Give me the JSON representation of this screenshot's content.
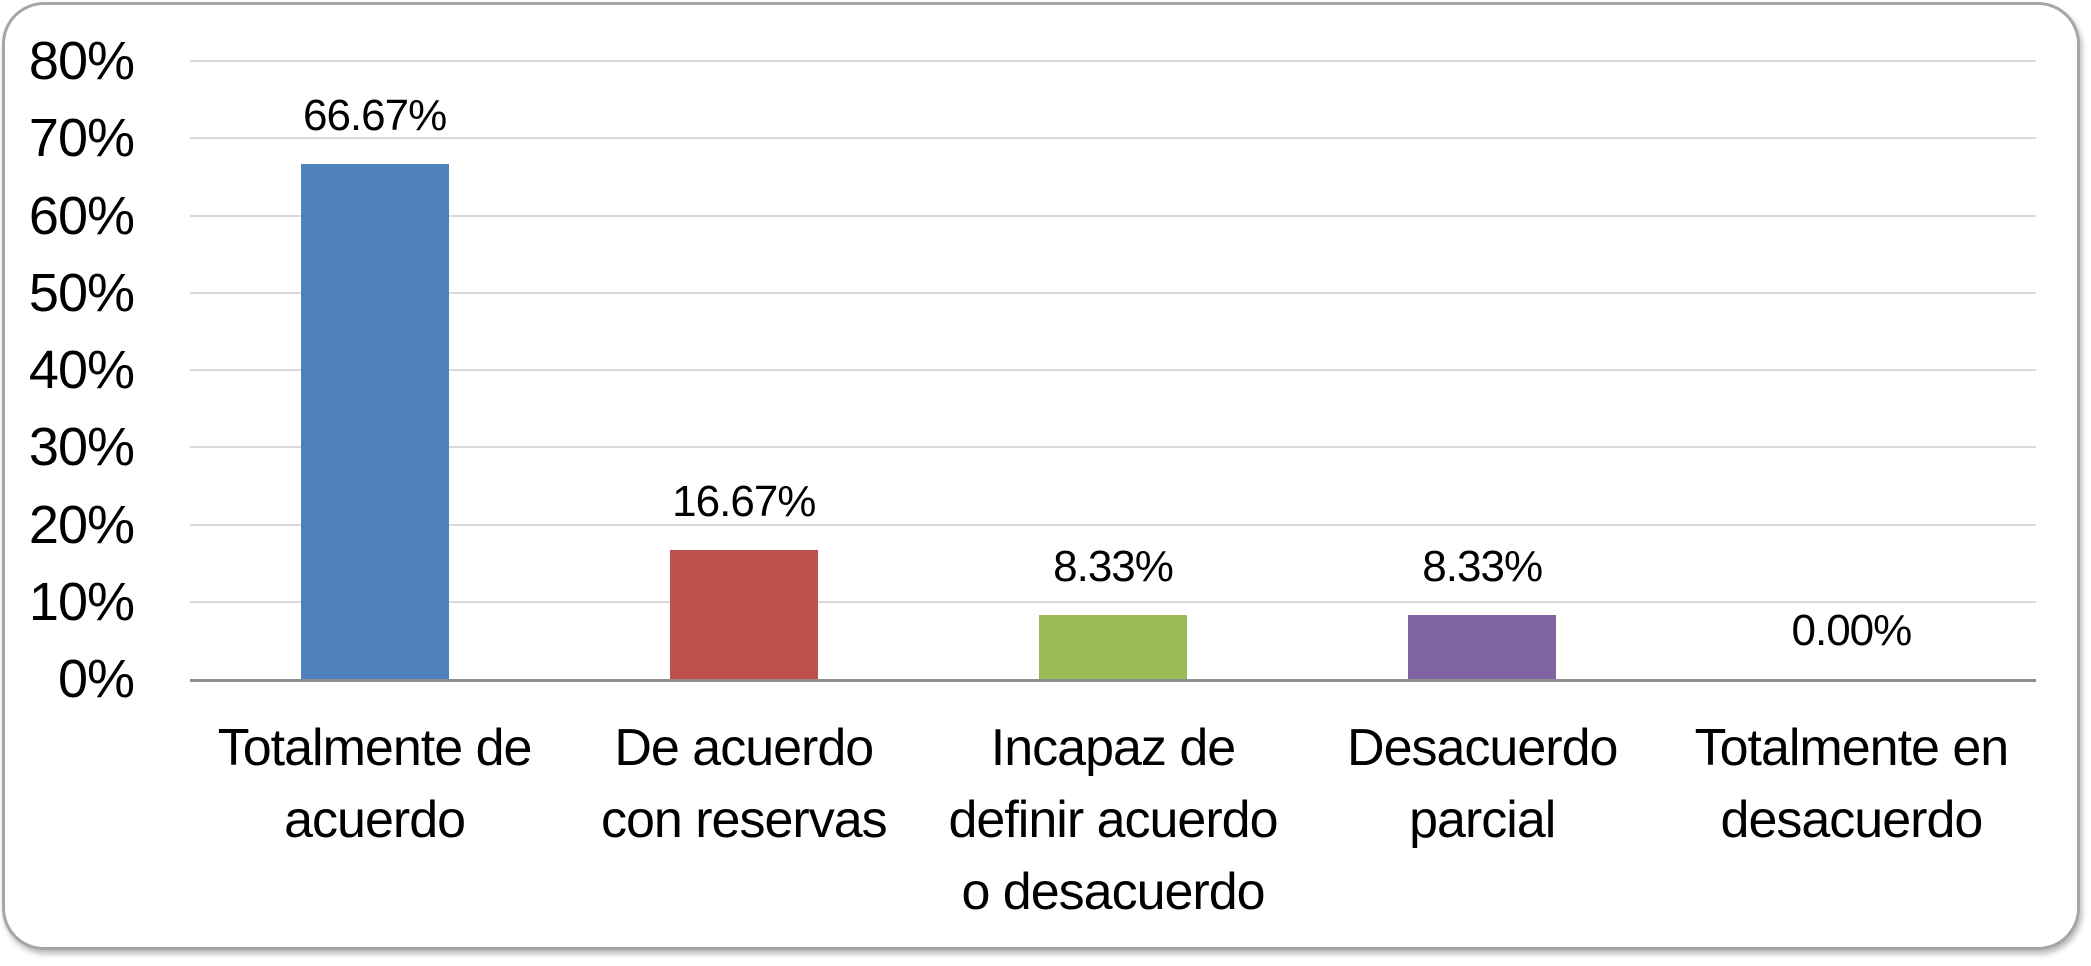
{
  "chart_data": {
    "type": "bar",
    "title": "",
    "xlabel": "",
    "ylabel": "",
    "legend": "none",
    "grid": true,
    "ylim": [
      0,
      80
    ],
    "categories": [
      "Totalmente de acuerdo",
      "De acuerdo con reservas",
      "Incapaz de definir acuerdo o desacuerdo",
      "Desacuerdo parcial",
      "Totalmente en desacuerdo"
    ],
    "category_label_lines": [
      [
        "Totalmente de",
        "acuerdo"
      ],
      [
        "De acuerdo",
        "con reservas"
      ],
      [
        "Incapaz de",
        "definir acuerdo",
        "o desacuerdo"
      ],
      [
        "Desacuerdo",
        "parcial"
      ],
      [
        "Totalmente en",
        "desacuerdo"
      ]
    ],
    "values": [
      66.67,
      16.67,
      8.33,
      8.33,
      0
    ],
    "value_labels": [
      "66.67%",
      "16.67%",
      "8.33%",
      "8.33%",
      "0.00%"
    ],
    "bar_colors": [
      "#4F81BD",
      "#C0504D",
      "#9BBB59",
      "#8064A2",
      "#4BACC6"
    ],
    "yticks": [
      {
        "value": 0,
        "label": "0%"
      },
      {
        "value": 10,
        "label": "10%"
      },
      {
        "value": 20,
        "label": "20%"
      },
      {
        "value": 30,
        "label": "30%"
      },
      {
        "value": 40,
        "label": "40%"
      },
      {
        "value": 50,
        "label": "50%"
      },
      {
        "value": 60,
        "label": "60%"
      },
      {
        "value": 70,
        "label": "70%"
      },
      {
        "value": 80,
        "label": "80%"
      }
    ]
  },
  "style": {
    "gridline_color": "#D9D9D9",
    "axis_color": "#8E8E8E",
    "frame_border_color": "#A6A6A6",
    "background_color": "#FFFFFF",
    "text_color": "#000000"
  }
}
